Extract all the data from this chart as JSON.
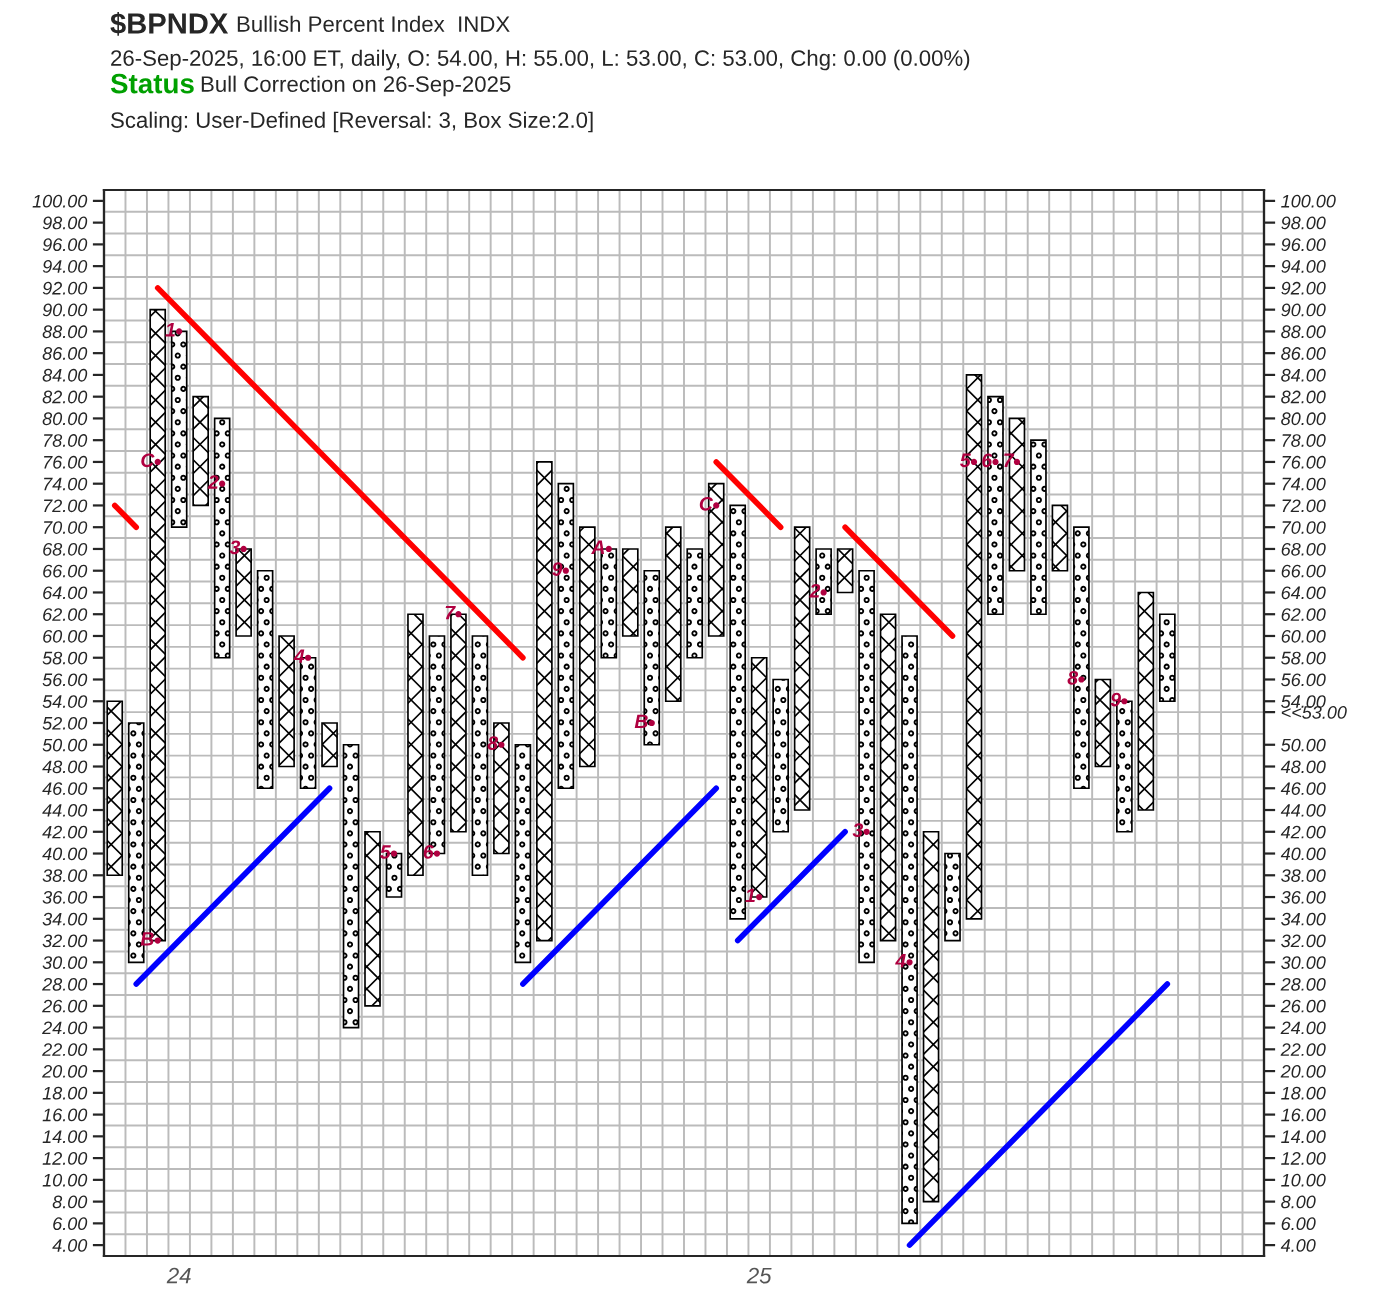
{
  "chart_data": {
    "type": "bar",
    "title": "$BPNDX",
    "subtitle": "Bullish Percent Index  INDX",
    "annotations": [
      "26-Sep-2025, 16:00 ET, daily, O: 54.00, H: 55.00, L: 53.00, C: 53.00, Chg: 0.00 (0.00%)",
      "Status",
      "Bull Correction on 26-Sep-2025",
      "Scaling: User-Defined [Reversal: 3, Box Size:2.0]"
    ],
    "categories": [
      null,
      null,
      null,
      "24",
      null,
      null,
      null,
      null,
      null,
      null,
      null,
      null,
      null,
      null,
      null,
      null,
      null,
      null,
      null,
      null,
      null,
      null,
      null,
      null,
      null,
      null,
      null,
      null,
      null,
      null,
      "25",
      null,
      null,
      null,
      null,
      null,
      null,
      null,
      null,
      null,
      null,
      null,
      null,
      null,
      null,
      null,
      null,
      null,
      null,
      null,
      null,
      null,
      null,
      null
    ],
    "series": [
      {
        "marker": "cross",
        "color": "#000000",
        "base": [
          38,
          null,
          32,
          null,
          72,
          null,
          60,
          null,
          48,
          null,
          48,
          null,
          26,
          null,
          38,
          null,
          42,
          null,
          40,
          null,
          32,
          null,
          48,
          null,
          60,
          null,
          54,
          null,
          60,
          null,
          36,
          null,
          44,
          null,
          64,
          null,
          32,
          null,
          8,
          null,
          34,
          null,
          66,
          null,
          66,
          null,
          48,
          null,
          44,
          null,
          null,
          null,
          null,
          null
        ],
        "values": [
          16,
          null,
          58,
          null,
          10,
          null,
          8,
          null,
          12,
          null,
          4,
          null,
          16,
          null,
          24,
          null,
          20,
          null,
          12,
          null,
          44,
          null,
          22,
          null,
          8,
          null,
          16,
          null,
          14,
          null,
          22,
          null,
          26,
          null,
          4,
          null,
          30,
          null,
          34,
          null,
          50,
          null,
          14,
          null,
          6,
          null,
          8,
          null,
          20,
          null,
          null,
          null,
          null,
          null
        ]
      },
      {
        "marker": "circle",
        "color": "#000000",
        "base": [
          null,
          30,
          null,
          70,
          null,
          58,
          null,
          46,
          null,
          46,
          null,
          24,
          null,
          36,
          null,
          40,
          null,
          38,
          null,
          30,
          null,
          46,
          null,
          58,
          null,
          50,
          null,
          58,
          null,
          34,
          null,
          42,
          null,
          62,
          null,
          30,
          null,
          6,
          null,
          32,
          null,
          62,
          null,
          62,
          null,
          46,
          null,
          42,
          null,
          54,
          null,
          null,
          null,
          null
        ],
        "values": [
          null,
          22,
          null,
          18,
          null,
          22,
          null,
          20,
          null,
          12,
          null,
          26,
          null,
          4,
          null,
          20,
          null,
          22,
          null,
          20,
          null,
          28,
          null,
          10,
          null,
          16,
          null,
          10,
          null,
          38,
          null,
          14,
          null,
          6,
          null,
          36,
          null,
          54,
          null,
          8,
          null,
          20,
          null,
          16,
          null,
          24,
          null,
          12,
          null,
          8,
          null,
          null,
          null,
          null
        ]
      },
      {
        "type": "scatter",
        "name": "1",
        "color": "#b00040",
        "values": [
          null,
          null,
          null,
          88,
          null,
          null,
          null,
          null,
          null,
          null,
          null,
          null,
          null,
          null,
          null,
          null,
          null,
          null,
          null,
          null,
          null,
          null,
          null,
          null,
          null,
          null,
          null,
          null,
          null,
          null,
          36,
          null,
          null,
          null,
          null,
          null,
          null,
          null,
          null,
          null,
          null,
          null,
          null,
          null,
          null,
          null,
          null,
          null,
          null,
          null,
          null,
          null,
          null,
          null
        ]
      },
      {
        "type": "scatter",
        "name": "2",
        "color": "#b00040",
        "values": [
          null,
          null,
          null,
          null,
          null,
          74,
          null,
          null,
          null,
          null,
          null,
          null,
          null,
          null,
          null,
          null,
          null,
          null,
          null,
          null,
          null,
          null,
          null,
          null,
          null,
          null,
          null,
          null,
          null,
          null,
          null,
          null,
          null,
          64,
          null,
          null,
          null,
          null,
          null,
          null,
          null,
          null,
          null,
          null,
          null,
          null,
          null,
          null,
          null,
          null,
          null,
          null,
          null,
          null
        ]
      },
      {
        "type": "scatter",
        "name": "3",
        "color": "#b00040",
        "values": [
          null,
          null,
          null,
          null,
          null,
          null,
          68,
          null,
          null,
          null,
          null,
          null,
          null,
          null,
          null,
          null,
          null,
          null,
          null,
          null,
          null,
          null,
          null,
          null,
          null,
          null,
          null,
          null,
          null,
          null,
          null,
          null,
          null,
          null,
          null,
          42,
          null,
          null,
          null,
          null,
          null,
          null,
          null,
          null,
          null,
          null,
          null,
          null,
          null,
          null,
          null,
          null,
          null,
          null
        ]
      },
      {
        "type": "scatter",
        "name": "4",
        "color": "#b00040",
        "values": [
          null,
          null,
          null,
          null,
          null,
          null,
          null,
          null,
          null,
          58,
          null,
          null,
          null,
          null,
          null,
          null,
          null,
          null,
          null,
          null,
          null,
          null,
          null,
          null,
          null,
          null,
          null,
          null,
          null,
          null,
          null,
          null,
          null,
          null,
          null,
          null,
          null,
          30,
          null,
          null,
          null,
          null,
          null,
          null,
          null,
          null,
          null,
          null,
          null,
          null,
          null,
          null,
          null,
          null
        ]
      },
      {
        "type": "scatter",
        "name": "5",
        "color": "#b00040",
        "values": [
          null,
          null,
          null,
          null,
          null,
          null,
          null,
          null,
          null,
          null,
          null,
          null,
          null,
          40,
          null,
          null,
          null,
          null,
          null,
          null,
          null,
          null,
          null,
          null,
          null,
          null,
          null,
          null,
          null,
          null,
          null,
          null,
          null,
          null,
          null,
          null,
          null,
          null,
          null,
          null,
          76,
          null,
          null,
          null,
          null,
          null,
          null,
          null,
          null,
          null,
          null,
          null,
          null,
          null
        ]
      },
      {
        "type": "scatter",
        "name": "6",
        "color": "#b00040",
        "values": [
          null,
          null,
          null,
          null,
          null,
          null,
          null,
          null,
          null,
          null,
          null,
          null,
          null,
          null,
          null,
          40,
          null,
          null,
          null,
          null,
          null,
          null,
          null,
          null,
          null,
          null,
          null,
          null,
          null,
          null,
          null,
          null,
          null,
          null,
          null,
          null,
          null,
          null,
          null,
          null,
          null,
          76,
          null,
          null,
          null,
          null,
          null,
          null,
          null,
          null,
          null,
          null,
          null,
          null
        ]
      },
      {
        "type": "scatter",
        "name": "7",
        "color": "#b00040",
        "values": [
          null,
          null,
          null,
          null,
          null,
          null,
          null,
          null,
          null,
          null,
          null,
          null,
          null,
          null,
          null,
          null,
          62,
          null,
          null,
          null,
          null,
          null,
          null,
          null,
          null,
          null,
          null,
          null,
          null,
          null,
          null,
          null,
          null,
          null,
          null,
          null,
          null,
          null,
          null,
          null,
          null,
          null,
          76,
          null,
          null,
          null,
          null,
          null,
          null,
          null,
          null,
          null,
          null,
          null
        ]
      },
      {
        "type": "scatter",
        "name": "8",
        "color": "#b00040",
        "values": [
          null,
          null,
          null,
          null,
          null,
          null,
          null,
          null,
          null,
          null,
          null,
          null,
          null,
          null,
          null,
          null,
          null,
          null,
          50,
          null,
          null,
          null,
          null,
          null,
          null,
          null,
          null,
          null,
          null,
          null,
          null,
          null,
          null,
          null,
          null,
          null,
          null,
          null,
          null,
          null,
          null,
          null,
          null,
          null,
          null,
          56,
          null,
          null,
          null,
          null,
          null,
          null,
          null,
          null
        ]
      },
      {
        "type": "scatter",
        "name": "9",
        "color": "#b00040",
        "values": [
          null,
          null,
          null,
          null,
          null,
          null,
          null,
          null,
          null,
          null,
          null,
          null,
          null,
          null,
          null,
          null,
          null,
          null,
          null,
          null,
          null,
          66,
          null,
          null,
          null,
          null,
          null,
          null,
          null,
          null,
          null,
          null,
          null,
          null,
          null,
          null,
          null,
          null,
          null,
          null,
          null,
          null,
          null,
          null,
          null,
          null,
          null,
          54,
          null,
          null,
          null,
          null,
          null,
          null
        ]
      },
      {
        "type": "scatter",
        "name": "A",
        "color": "#b00040",
        "values": [
          null,
          null,
          null,
          null,
          null,
          null,
          null,
          null,
          null,
          null,
          null,
          null,
          null,
          null,
          null,
          null,
          null,
          null,
          null,
          null,
          null,
          null,
          null,
          68,
          null,
          null,
          null,
          null,
          null,
          null,
          null,
          null,
          null,
          null,
          null,
          null,
          null,
          null,
          null,
          null,
          null,
          null,
          null,
          null,
          null,
          null,
          null,
          null,
          null,
          null,
          null,
          null,
          null,
          null
        ]
      },
      {
        "type": "scatter",
        "name": "B",
        "color": "#b00040",
        "values": [
          null,
          null,
          32,
          null,
          null,
          null,
          null,
          null,
          null,
          null,
          null,
          null,
          null,
          null,
          null,
          null,
          null,
          null,
          null,
          null,
          null,
          null,
          null,
          null,
          null,
          52,
          null,
          null,
          null,
          null,
          null,
          null,
          null,
          null,
          null,
          null,
          null,
          null,
          null,
          null,
          null,
          null,
          null,
          null,
          null,
          null,
          null,
          null,
          null,
          null,
          null,
          null,
          null,
          null
        ]
      },
      {
        "type": "scatter",
        "name": "C",
        "color": "#b00040",
        "values": [
          null,
          null,
          76,
          null,
          null,
          null,
          null,
          null,
          null,
          null,
          null,
          null,
          null,
          null,
          null,
          null,
          null,
          null,
          null,
          null,
          null,
          null,
          null,
          null,
          null,
          null,
          null,
          null,
          72,
          null,
          null,
          null,
          null,
          null,
          null,
          null,
          null,
          null,
          null,
          null,
          null,
          null,
          null,
          null,
          null,
          null,
          null,
          null,
          null,
          null,
          null,
          null,
          null,
          null
        ]
      },
      {
        "type": "line",
        "color": "#ff0000",
        "values": [
          72,
          70,
          null,
          null,
          null,
          null,
          null,
          null,
          null,
          null,
          null,
          null,
          null,
          null,
          null,
          null,
          null,
          null,
          null,
          null,
          null,
          null,
          null,
          null,
          null,
          null,
          null,
          null,
          null,
          null,
          null,
          null,
          null,
          null,
          null,
          null,
          null,
          null,
          null,
          null,
          null,
          null,
          null,
          null,
          null,
          null,
          null,
          null,
          null,
          null,
          null,
          null,
          null,
          null
        ]
      },
      {
        "type": "line",
        "color": "#ff0000",
        "values": [
          null,
          null,
          92,
          null,
          null,
          null,
          null,
          null,
          null,
          null,
          null,
          null,
          null,
          null,
          null,
          null,
          null,
          null,
          null,
          58,
          null,
          null,
          null,
          null,
          null,
          null,
          null,
          null,
          null,
          null,
          null,
          null,
          null,
          null,
          null,
          null,
          null,
          null,
          null,
          null,
          null,
          null,
          null,
          null,
          null,
          null,
          null,
          null,
          null,
          null,
          null,
          null,
          null,
          null
        ]
      },
      {
        "type": "line",
        "color": "#ff0000",
        "values": [
          null,
          null,
          null,
          null,
          null,
          null,
          null,
          null,
          null,
          null,
          null,
          null,
          null,
          null,
          null,
          null,
          null,
          null,
          null,
          null,
          null,
          null,
          null,
          null,
          null,
          null,
          null,
          null,
          76,
          null,
          null,
          70,
          null,
          null,
          null,
          null,
          null,
          null,
          null,
          null,
          null,
          null,
          null,
          null,
          null,
          null,
          null,
          null,
          null,
          null,
          null,
          null,
          null,
          null
        ]
      },
      {
        "type": "line",
        "color": "#ff0000",
        "values": [
          null,
          null,
          null,
          null,
          null,
          null,
          null,
          null,
          null,
          null,
          null,
          null,
          null,
          null,
          null,
          null,
          null,
          null,
          null,
          null,
          null,
          null,
          null,
          null,
          null,
          null,
          null,
          null,
          null,
          null,
          null,
          null,
          null,
          null,
          70,
          null,
          null,
          null,
          null,
          60,
          null,
          null,
          null,
          null,
          null,
          null,
          null,
          null,
          null,
          null,
          null,
          null,
          null,
          null
        ]
      },
      {
        "type": "line",
        "color": "#0000ff",
        "values": [
          null,
          28,
          null,
          null,
          null,
          null,
          null,
          null,
          null,
          null,
          46,
          null,
          null,
          null,
          null,
          null,
          null,
          null,
          null,
          null,
          null,
          null,
          null,
          null,
          null,
          null,
          null,
          null,
          null,
          null,
          null,
          null,
          null,
          null,
          null,
          null,
          null,
          null,
          null,
          null,
          null,
          null,
          null,
          null,
          null,
          null,
          null,
          null,
          null,
          null,
          null,
          null,
          null,
          null
        ]
      },
      {
        "type": "line",
        "color": "#0000ff",
        "values": [
          null,
          null,
          null,
          null,
          null,
          null,
          null,
          null,
          null,
          null,
          null,
          null,
          null,
          null,
          null,
          null,
          null,
          null,
          null,
          28,
          null,
          null,
          null,
          null,
          null,
          null,
          null,
          null,
          46,
          null,
          null,
          null,
          null,
          null,
          null,
          null,
          null,
          null,
          null,
          null,
          null,
          null,
          null,
          null,
          null,
          null,
          null,
          null,
          null,
          null,
          null,
          null,
          null,
          null
        ]
      },
      {
        "type": "line",
        "color": "#0000ff",
        "values": [
          null,
          null,
          null,
          null,
          null,
          null,
          null,
          null,
          null,
          null,
          null,
          null,
          null,
          null,
          null,
          null,
          null,
          null,
          null,
          null,
          null,
          null,
          null,
          null,
          null,
          null,
          null,
          null,
          null,
          32,
          null,
          null,
          null,
          null,
          42,
          null,
          null,
          null,
          null,
          null,
          null,
          null,
          null,
          null,
          null,
          null,
          null,
          null,
          null,
          null,
          null,
          null,
          null,
          null
        ]
      },
      {
        "type": "line",
        "color": "#0000ff",
        "values": [
          null,
          null,
          null,
          null,
          null,
          null,
          null,
          null,
          null,
          null,
          null,
          null,
          null,
          null,
          null,
          null,
          null,
          null,
          null,
          null,
          null,
          null,
          null,
          null,
          null,
          null,
          null,
          null,
          null,
          null,
          null,
          null,
          null,
          null,
          null,
          null,
          null,
          4,
          null,
          null,
          null,
          null,
          null,
          null,
          null,
          null,
          null,
          null,
          null,
          28,
          null,
          null,
          null,
          null
        ]
      }
    ],
    "ylim": [
      3,
      101
    ],
    "yticks": [
      {
        "value": 4,
        "label": "4.00"
      },
      {
        "value": 6,
        "label": "6.00"
      },
      {
        "value": 8,
        "label": "8.00"
      },
      {
        "value": 10,
        "label": "10.00"
      },
      {
        "value": 12,
        "label": "12.00"
      },
      {
        "value": 14,
        "label": "14.00"
      },
      {
        "value": 16,
        "label": "16.00"
      },
      {
        "value": 18,
        "label": "18.00"
      },
      {
        "value": 20,
        "label": "20.00"
      },
      {
        "value": 22,
        "label": "22.00"
      },
      {
        "value": 24,
        "label": "24.00"
      },
      {
        "value": 26,
        "label": "26.00"
      },
      {
        "value": 28,
        "label": "28.00"
      },
      {
        "value": 30,
        "label": "30.00"
      },
      {
        "value": 32,
        "label": "32.00"
      },
      {
        "value": 34,
        "label": "34.00"
      },
      {
        "value": 36,
        "label": "36.00"
      },
      {
        "value": 38,
        "label": "38.00"
      },
      {
        "value": 40,
        "label": "40.00"
      },
      {
        "value": 42,
        "label": "42.00"
      },
      {
        "value": 44,
        "label": "44.00"
      },
      {
        "value": 46,
        "label": "46.00"
      },
      {
        "value": 48,
        "label": "48.00"
      },
      {
        "value": 50,
        "label": "50.00"
      },
      {
        "value": 52,
        "label": "52.00"
      },
      {
        "value": 54,
        "label": "54.00"
      },
      {
        "value": 56,
        "label": "56.00"
      },
      {
        "value": 58,
        "label": "58.00"
      },
      {
        "value": 60,
        "label": "60.00"
      },
      {
        "value": 62,
        "label": "62.00"
      },
      {
        "value": 64,
        "label": "64.00"
      },
      {
        "value": 66,
        "label": "66.00"
      },
      {
        "value": 68,
        "label": "68.00"
      },
      {
        "value": 70,
        "label": "70.00"
      },
      {
        "value": 72,
        "label": "72.00"
      },
      {
        "value": 74,
        "label": "74.00"
      },
      {
        "value": 76,
        "label": "76.00"
      },
      {
        "value": 78,
        "label": "78.00"
      },
      {
        "value": 80,
        "label": "80.00"
      },
      {
        "value": 82,
        "label": "82.00"
      },
      {
        "value": 84,
        "label": "84.00"
      },
      {
        "value": 86,
        "label": "86.00"
      },
      {
        "value": 88,
        "label": "88.00"
      },
      {
        "value": 90,
        "label": "90.00"
      },
      {
        "value": 92,
        "label": "92.00"
      },
      {
        "value": 94,
        "label": "94.00"
      },
      {
        "value": 96,
        "label": "96.00"
      },
      {
        "value": 98,
        "label": "98.00"
      },
      {
        "value": 100,
        "label": "100.00"
      }
    ],
    "y2lim": [
      3,
      101
    ],
    "y2ticks": [
      {
        "value": 4,
        "label": "4.00"
      },
      {
        "value": 6,
        "label": "6.00"
      },
      {
        "value": 8,
        "label": "8.00"
      },
      {
        "value": 10,
        "label": "10.00"
      },
      {
        "value": 12,
        "label": "12.00"
      },
      {
        "value": 14,
        "label": "14.00"
      },
      {
        "value": 16,
        "label": "16.00"
      },
      {
        "value": 18,
        "label": "18.00"
      },
      {
        "value": 20,
        "label": "20.00"
      },
      {
        "value": 22,
        "label": "22.00"
      },
      {
        "value": 24,
        "label": "24.00"
      },
      {
        "value": 26,
        "label": "26.00"
      },
      {
        "value": 28,
        "label": "28.00"
      },
      {
        "value": 30,
        "label": "30.00"
      },
      {
        "value": 32,
        "label": "32.00"
      },
      {
        "value": 34,
        "label": "34.00"
      },
      {
        "value": 36,
        "label": "36.00"
      },
      {
        "value": 38,
        "label": "38.00"
      },
      {
        "value": 40,
        "label": "40.00"
      },
      {
        "value": 42,
        "label": "42.00"
      },
      {
        "value": 44,
        "label": "44.00"
      },
      {
        "value": 46,
        "label": "46.00"
      },
      {
        "value": 48,
        "label": "48.00"
      },
      {
        "value": 50,
        "label": "50.00"
      },
      {
        "value": 53,
        "label": "<<53.00"
      },
      {
        "value": 54,
        "label": "54.00"
      },
      {
        "value": 56,
        "label": "56.00"
      },
      {
        "value": 58,
        "label": "58.00"
      },
      {
        "value": 60,
        "label": "60.00"
      },
      {
        "value": 62,
        "label": "62.00"
      },
      {
        "value": 64,
        "label": "64.00"
      },
      {
        "value": 66,
        "label": "66.00"
      },
      {
        "value": 68,
        "label": "68.00"
      },
      {
        "value": 70,
        "label": "70.00"
      },
      {
        "value": 72,
        "label": "72.00"
      },
      {
        "value": 74,
        "label": "74.00"
      },
      {
        "value": 76,
        "label": "76.00"
      },
      {
        "value": 78,
        "label": "78.00"
      },
      {
        "value": 80,
        "label": "80.00"
      },
      {
        "value": 82,
        "label": "82.00"
      },
      {
        "value": 84,
        "label": "84.00"
      },
      {
        "value": 86,
        "label": "86.00"
      },
      {
        "value": 88,
        "label": "88.00"
      },
      {
        "value": 90,
        "label": "90.00"
      },
      {
        "value": 92,
        "label": "92.00"
      },
      {
        "value": 94,
        "label": "94.00"
      },
      {
        "value": 96,
        "label": "96.00"
      },
      {
        "value": 98,
        "label": "98.00"
      },
      {
        "value": 100,
        "label": "100.00"
      }
    ],
    "grid": true
  }
}
